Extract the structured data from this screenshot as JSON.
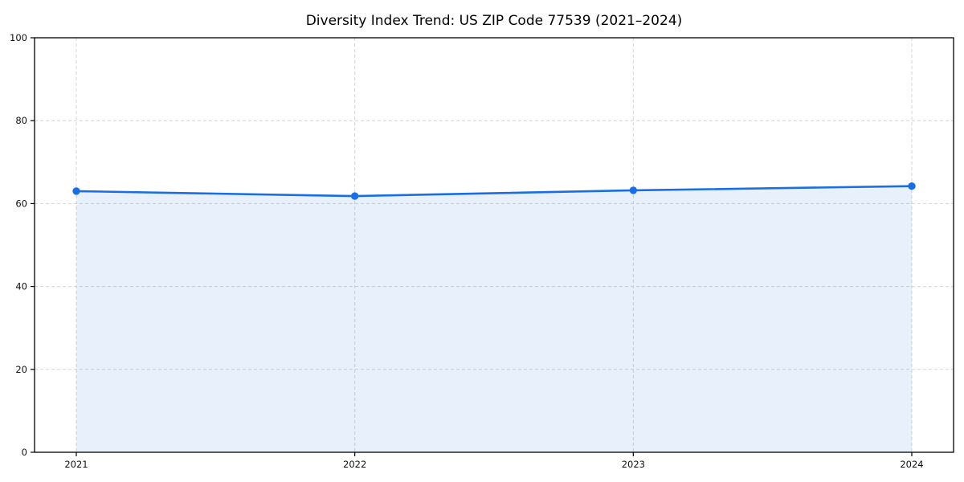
{
  "chart_data": {
    "type": "area",
    "title": "Diversity Index Trend: US ZIP Code 77539 (2021–2024)",
    "xlabel": "",
    "ylabel": "",
    "x": [
      2021,
      2022,
      2023,
      2024
    ],
    "x_tick_labels": [
      "2021",
      "2022",
      "2023",
      "2024"
    ],
    "series": [
      {
        "name": "Diversity Index",
        "values": [
          63.0,
          61.8,
          63.2,
          64.2
        ]
      }
    ],
    "ylim": [
      0,
      100
    ],
    "y_ticks": [
      0,
      20,
      40,
      60,
      80,
      100
    ],
    "y_tick_labels": [
      "0",
      "20",
      "40",
      "60",
      "80",
      "100"
    ],
    "grid": true,
    "grid_style": "dashed",
    "legend": "none",
    "marker": "circle",
    "colors": {
      "line": "#1a6ee4",
      "marker": "#1a6ee4",
      "fill": "rgba(26, 110, 228, 0.10)",
      "grid": "#d4d4d4",
      "spine": "#000000",
      "text": "#000000"
    }
  }
}
